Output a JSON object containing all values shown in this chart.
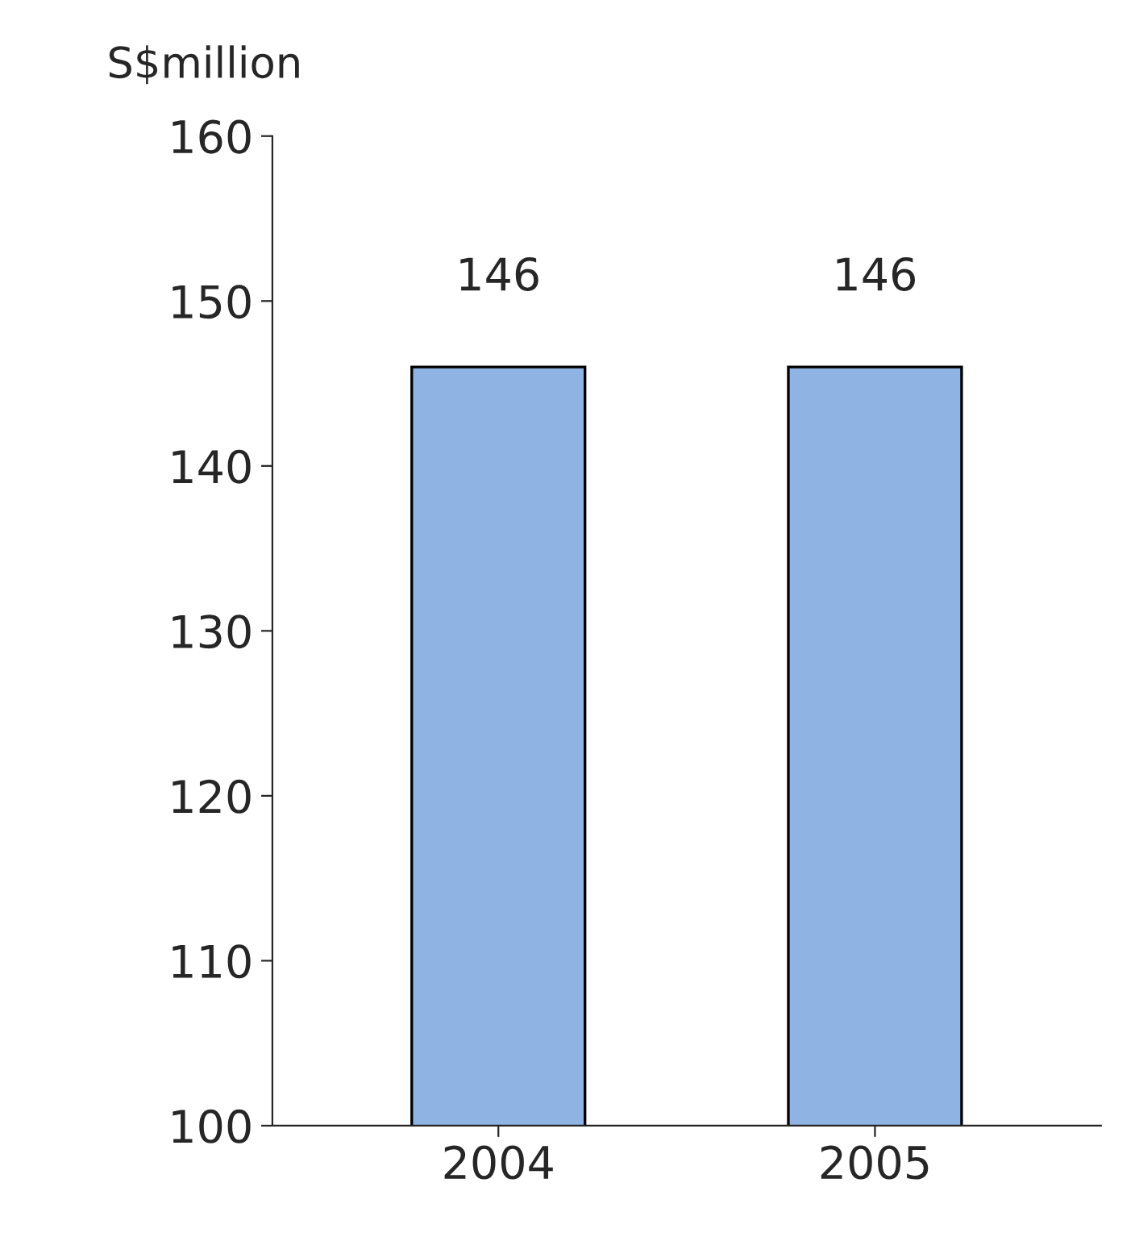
{
  "chart_data": {
    "type": "bar",
    "ylabel": "S$million",
    "categories": [
      "2004",
      "2005"
    ],
    "values": [
      146,
      146
    ],
    "color": "#8fb4e3",
    "ylim": [
      100,
      160
    ],
    "yticks": [
      100,
      110,
      120,
      130,
      140,
      150,
      160
    ],
    "data_labels": true,
    "grid": false
  }
}
